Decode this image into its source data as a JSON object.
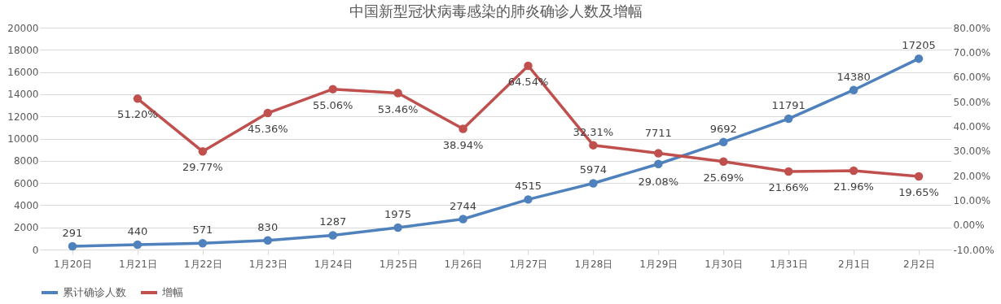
{
  "chart_data": {
    "type": "line",
    "title": "中国新型冠状病毒感染的肺炎确诊人数及增幅",
    "categories": [
      "1月20日",
      "1月21日",
      "1月22日",
      "1月23日",
      "1月24日",
      "1月25日",
      "1月26日",
      "1月27日",
      "1月28日",
      "1月29日",
      "1月30日",
      "1月31日",
      "2月1日",
      "2月2日"
    ],
    "series": [
      {
        "name": "累计确诊人数",
        "color": "#4f81bd",
        "values": [
          291,
          440,
          571,
          830,
          1287,
          1975,
          2744,
          4515,
          5974,
          7711,
          9692,
          11791,
          14380,
          17205
        ],
        "value_labels": [
          "291",
          "440",
          "571",
          "830",
          "1287",
          "1975",
          "2744",
          "4515",
          "5974",
          "7711",
          "9692",
          "11791",
          "14380",
          "17205"
        ]
      },
      {
        "name": "增幅",
        "color": "#c0504d",
        "axis": "y2",
        "values": [
          null,
          51.2,
          29.77,
          45.36,
          55.06,
          53.46,
          38.94,
          64.54,
          32.31,
          29.08,
          25.69,
          21.66,
          21.96,
          19.65
        ],
        "value_labels": [
          null,
          "51.20%",
          "29.77%",
          "45.36%",
          "55.06%",
          "53.46%",
          "38.94%",
          "64.54%",
          "32.31%",
          "29.08%",
          "25.69%",
          "21.66%",
          "21.96%",
          "19.65%"
        ]
      }
    ],
    "ylim": [
      0,
      20000
    ],
    "yticks": [
      0,
      2000,
      4000,
      6000,
      8000,
      10000,
      12000,
      14000,
      16000,
      18000,
      20000
    ],
    "y2lim": [
      -10,
      80
    ],
    "y2ticks": [
      {
        "value": -10,
        "label": "-10.00%"
      },
      {
        "value": 0,
        "label": "0.00%"
      },
      {
        "value": 10,
        "label": "10.00%"
      },
      {
        "value": 20,
        "label": "20.00%"
      },
      {
        "value": 30,
        "label": "30.00%"
      },
      {
        "value": 40,
        "label": "40.00%"
      },
      {
        "value": 50,
        "label": "50.00%"
      },
      {
        "value": 60,
        "label": "60.00%"
      },
      {
        "value": 70,
        "label": "70.00%"
      },
      {
        "value": 80,
        "label": "80.00%"
      }
    ],
    "grid": "y",
    "legend": "bottom",
    "marker": "circle",
    "line_style": "solid"
  }
}
